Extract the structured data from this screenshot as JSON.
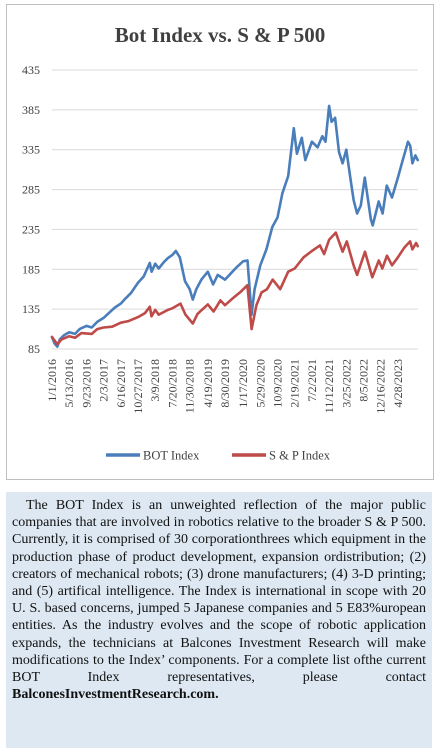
{
  "chart_data": {
    "type": "line",
    "title": "Bot Index vs. S & P 500",
    "ylim": [
      85,
      435
    ],
    "yticks": [
      85,
      135,
      185,
      235,
      285,
      335,
      385,
      435
    ],
    "xlim": [
      "2016-01-01",
      "2023-09-30"
    ],
    "xticks": [
      "1/1/2016",
      "5/13/2016",
      "9/23/2016",
      "2/3/2017",
      "6/16/2017",
      "10/27/2017",
      "3/9/2018",
      "7/20/2018",
      "11/30/2018",
      "4/19/2019",
      "8/30/2019",
      "1/17/2020",
      "5/29/2020",
      "10/9/2020",
      "2/19/2021",
      "7/2/2021",
      "11/12/2021",
      "3/25/2022",
      "8/5/2022",
      "12/16/2022",
      "4/28/2023"
    ],
    "grid": true,
    "legend_position": "bottom",
    "series": [
      {
        "name": "BOT Index",
        "color": "#4a7ebb",
        "points": [
          [
            "2016-01-01",
            100
          ],
          [
            "2016-01-20",
            92
          ],
          [
            "2016-02-11",
            88
          ],
          [
            "2016-03-01",
            97
          ],
          [
            "2016-04-01",
            102
          ],
          [
            "2016-05-13",
            106
          ],
          [
            "2016-06-27",
            104
          ],
          [
            "2016-08-01",
            110
          ],
          [
            "2016-09-23",
            114
          ],
          [
            "2016-11-04",
            112
          ],
          [
            "2016-12-15",
            119
          ],
          [
            "2017-02-03",
            124
          ],
          [
            "2017-03-15",
            130
          ],
          [
            "2017-05-01",
            137
          ],
          [
            "2017-06-16",
            142
          ],
          [
            "2017-07-20",
            148
          ],
          [
            "2017-09-01",
            155
          ],
          [
            "2017-10-27",
            168
          ],
          [
            "2017-12-10",
            176
          ],
          [
            "2018-01-26",
            193
          ],
          [
            "2018-02-09",
            182
          ],
          [
            "2018-03-09",
            192
          ],
          [
            "2018-04-05",
            186
          ],
          [
            "2018-05-15",
            194
          ],
          [
            "2018-06-15",
            199
          ],
          [
            "2018-07-20",
            203
          ],
          [
            "2018-08-15",
            208
          ],
          [
            "2018-09-15",
            200
          ],
          [
            "2018-10-25",
            170
          ],
          [
            "2018-11-30",
            160
          ],
          [
            "2018-12-24",
            147
          ],
          [
            "2019-01-20",
            160
          ],
          [
            "2019-03-01",
            172
          ],
          [
            "2019-04-19",
            182
          ],
          [
            "2019-05-30",
            166
          ],
          [
            "2019-07-05",
            178
          ],
          [
            "2019-08-30",
            172
          ],
          [
            "2019-10-15",
            180
          ],
          [
            "2019-12-01",
            188
          ],
          [
            "2020-01-17",
            195
          ],
          [
            "2020-02-20",
            196
          ],
          [
            "2020-03-23",
            128
          ],
          [
            "2020-04-15",
            160
          ],
          [
            "2020-05-29",
            190
          ],
          [
            "2020-07-15",
            210
          ],
          [
            "2020-08-30",
            238
          ],
          [
            "2020-10-09",
            250
          ],
          [
            "2020-11-15",
            280
          ],
          [
            "2020-12-31",
            302
          ],
          [
            "2021-02-12",
            362
          ],
          [
            "2021-03-08",
            330
          ],
          [
            "2021-04-15",
            350
          ],
          [
            "2021-05-12",
            322
          ],
          [
            "2021-07-02",
            345
          ],
          [
            "2021-08-15",
            338
          ],
          [
            "2021-09-20",
            352
          ],
          [
            "2021-10-15",
            345
          ],
          [
            "2021-11-12",
            390
          ],
          [
            "2021-12-01",
            370
          ],
          [
            "2021-12-28",
            375
          ],
          [
            "2022-01-27",
            332
          ],
          [
            "2022-02-24",
            318
          ],
          [
            "2022-03-25",
            335
          ],
          [
            "2022-04-25",
            300
          ],
          [
            "2022-05-20",
            272
          ],
          [
            "2022-06-16",
            255
          ],
          [
            "2022-07-15",
            265
          ],
          [
            "2022-08-15",
            300
          ],
          [
            "2022-09-30",
            248
          ],
          [
            "2022-10-15",
            240
          ],
          [
            "2022-11-30",
            270
          ],
          [
            "2022-12-30",
            255
          ],
          [
            "2023-02-01",
            290
          ],
          [
            "2023-03-13",
            275
          ],
          [
            "2023-04-28",
            300
          ],
          [
            "2023-06-01",
            320
          ],
          [
            "2023-07-15",
            345
          ],
          [
            "2023-08-01",
            340
          ],
          [
            "2023-08-18",
            318
          ],
          [
            "2023-09-10",
            328
          ],
          [
            "2023-09-28",
            322
          ]
        ]
      },
      {
        "name": "S & P Index",
        "color": "#be4b48",
        "points": [
          [
            "2016-01-01",
            100
          ],
          [
            "2016-02-11",
            91
          ],
          [
            "2016-03-15",
            97
          ],
          [
            "2016-05-13",
            101
          ],
          [
            "2016-06-27",
            99
          ],
          [
            "2016-08-15",
            105
          ],
          [
            "2016-11-04",
            104
          ],
          [
            "2016-12-15",
            110
          ],
          [
            "2017-02-03",
            112
          ],
          [
            "2017-04-10",
            113
          ],
          [
            "2017-06-16",
            118
          ],
          [
            "2017-08-15",
            120
          ],
          [
            "2017-10-27",
            125
          ],
          [
            "2017-12-20",
            130
          ],
          [
            "2018-01-26",
            138
          ],
          [
            "2018-02-08",
            126
          ],
          [
            "2018-03-09",
            134
          ],
          [
            "2018-04-05",
            128
          ],
          [
            "2018-06-15",
            134
          ],
          [
            "2018-07-20",
            136
          ],
          [
            "2018-09-20",
            142
          ],
          [
            "2018-10-29",
            128
          ],
          [
            "2018-12-24",
            117
          ],
          [
            "2019-01-30",
            129
          ],
          [
            "2019-04-19",
            141
          ],
          [
            "2019-06-03",
            132
          ],
          [
            "2019-07-26",
            146
          ],
          [
            "2019-08-30",
            140
          ],
          [
            "2019-10-25",
            148
          ],
          [
            "2019-12-31",
            157
          ],
          [
            "2020-02-19",
            165
          ],
          [
            "2020-03-23",
            110
          ],
          [
            "2020-04-29",
            140
          ],
          [
            "2020-06-08",
            156
          ],
          [
            "2020-07-20",
            160
          ],
          [
            "2020-09-02",
            172
          ],
          [
            "2020-10-30",
            160
          ],
          [
            "2020-12-31",
            182
          ],
          [
            "2021-02-19",
            186
          ],
          [
            "2021-04-29",
            200
          ],
          [
            "2021-07-02",
            208
          ],
          [
            "2021-09-02",
            215
          ],
          [
            "2021-10-04",
            204
          ],
          [
            "2021-11-12",
            222
          ],
          [
            "2022-01-03",
            231
          ],
          [
            "2022-02-24",
            207
          ],
          [
            "2022-03-29",
            220
          ],
          [
            "2022-05-20",
            190
          ],
          [
            "2022-06-16",
            178
          ],
          [
            "2022-08-16",
            207
          ],
          [
            "2022-10-12",
            175
          ],
          [
            "2022-12-01",
            196
          ],
          [
            "2022-12-28",
            186
          ],
          [
            "2023-02-02",
            202
          ],
          [
            "2023-03-13",
            190
          ],
          [
            "2023-04-28",
            200
          ],
          [
            "2023-06-15",
            212
          ],
          [
            "2023-07-31",
            220
          ],
          [
            "2023-08-18",
            210
          ],
          [
            "2023-09-15",
            218
          ],
          [
            "2023-09-28",
            214
          ]
        ]
      }
    ]
  },
  "description": {
    "para": "The BOT Index is an unweighted reflection of the major public companies that are involved in robotics relative to the broader S & P 500. Currently, it is comprised of 30 corporationthrees which equipment in the production phase of product development, expansion ordistribution; (2) creators of mechanical robots; (3) drone manufacturers; (4) 3-D printing; and (5) artifical intelligence. The Index is international in scope with 20 U. S. based concerns, jumped 5 Japanese companies and 5 E83%uropean entities. As the industry evolves and the scope of robotic application expands, the technicians at Balcones Investment Research will make modifications to the Index’ components. For a  complete list ofthe current BOT Index representatives, please contact",
    "contact": "BalconesInvestmentResearch.com."
  }
}
